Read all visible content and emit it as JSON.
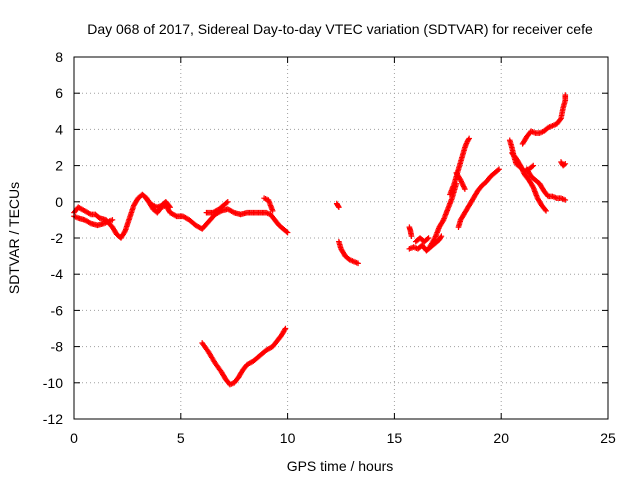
{
  "chart_data": {
    "type": "scatter",
    "title": "Day 068 of 2017, Sidereal Day-to-day VTEC variation (SDTVAR) for receiver cefe",
    "xlabel": "GPS time / hours",
    "ylabel": "SDTVAR / TECUs",
    "xlim": [
      0,
      25
    ],
    "ylim": [
      -12,
      8
    ],
    "xticks": [
      "0",
      "5",
      "10",
      "15",
      "20",
      "25"
    ],
    "yticks": [
      "-12",
      "-10",
      "-8",
      "-6",
      "-4",
      "-2",
      "0",
      "2",
      "4",
      "6",
      "8"
    ],
    "grid": true,
    "legend": "none",
    "marker": "plus",
    "color": "#ff0000",
    "segments": [
      [
        [
          0,
          -0.6
        ],
        [
          0.2,
          -0.3
        ],
        [
          0.5,
          -0.5
        ],
        [
          0.8,
          -0.7
        ],
        [
          1.0,
          -0.7
        ],
        [
          1.2,
          -0.9
        ],
        [
          1.5,
          -1.0
        ],
        [
          1.8,
          -1.4
        ],
        [
          2.0,
          -1.8
        ],
        [
          2.2,
          -2.0
        ],
        [
          2.4,
          -1.6
        ],
        [
          2.6,
          -0.9
        ],
        [
          2.8,
          -0.2
        ],
        [
          3.0,
          0.2
        ],
        [
          3.2,
          0.4
        ],
        [
          3.4,
          0.2
        ],
        [
          3.5,
          0.0
        ],
        [
          3.7,
          -0.4
        ],
        [
          3.9,
          -0.6
        ],
        [
          4.1,
          -0.3
        ],
        [
          4.3,
          -0.2
        ],
        [
          4.5,
          -0.6
        ],
        [
          4.8,
          -0.8
        ],
        [
          5.1,
          -0.8
        ],
        [
          5.4,
          -1.0
        ],
        [
          5.7,
          -1.3
        ],
        [
          6.0,
          -1.5
        ],
        [
          6.3,
          -1.1
        ],
        [
          6.6,
          -0.7
        ],
        [
          6.9,
          -0.5
        ],
        [
          7.2,
          -0.4
        ],
        [
          7.5,
          -0.6
        ],
        [
          7.8,
          -0.7
        ],
        [
          8.1,
          -0.6
        ],
        [
          8.4,
          -0.6
        ],
        [
          8.7,
          -0.6
        ],
        [
          9.0,
          -0.6
        ],
        [
          9.2,
          -0.7
        ],
        [
          9.4,
          -1.0
        ],
        [
          9.6,
          -1.3
        ],
        [
          9.8,
          -1.5
        ],
        [
          10.0,
          -1.7
        ]
      ],
      [
        [
          0,
          -0.8
        ],
        [
          0.2,
          -0.9
        ],
        [
          0.5,
          -1.0
        ],
        [
          0.8,
          -1.2
        ],
        [
          1.1,
          -1.3
        ],
        [
          1.4,
          -1.2
        ],
        [
          1.6,
          -1.1
        ],
        [
          1.8,
          -1.0
        ]
      ],
      [
        [
          3.3,
          0.3
        ],
        [
          3.5,
          0.0
        ],
        [
          3.7,
          -0.2
        ],
        [
          3.9,
          -0.3
        ],
        [
          4.1,
          -0.2
        ],
        [
          4.3,
          0.0
        ],
        [
          4.5,
          -0.3
        ]
      ],
      [
        [
          6.2,
          -0.6
        ],
        [
          6.5,
          -0.6
        ],
        [
          6.8,
          -0.4
        ],
        [
          7.0,
          -0.2
        ],
        [
          7.2,
          0.0
        ]
      ],
      [
        [
          8.9,
          0.2
        ],
        [
          9.1,
          0.1
        ],
        [
          9.2,
          -0.2
        ],
        [
          9.3,
          -0.5
        ]
      ],
      [
        [
          6.0,
          -7.8
        ],
        [
          6.3,
          -8.3
        ],
        [
          6.6,
          -8.9
        ],
        [
          6.9,
          -9.4
        ],
        [
          7.1,
          -9.8
        ],
        [
          7.3,
          -10.1
        ],
        [
          7.5,
          -10.0
        ],
        [
          7.7,
          -9.7
        ],
        [
          7.9,
          -9.3
        ],
        [
          8.1,
          -9.0
        ],
        [
          8.4,
          -8.8
        ],
        [
          8.7,
          -8.5
        ],
        [
          9.0,
          -8.2
        ],
        [
          9.3,
          -8.0
        ],
        [
          9.5,
          -7.7
        ],
        [
          9.7,
          -7.4
        ],
        [
          9.9,
          -7.0
        ]
      ],
      [
        [
          12.3,
          -0.1
        ],
        [
          12.35,
          -0.2
        ],
        [
          12.4,
          -0.3
        ]
      ],
      [
        [
          12.4,
          -2.2
        ],
        [
          12.5,
          -2.6
        ],
        [
          12.6,
          -2.8
        ],
        [
          12.7,
          -3.0
        ],
        [
          12.9,
          -3.2
        ],
        [
          13.1,
          -3.3
        ],
        [
          13.3,
          -3.4
        ]
      ],
      [
        [
          15.7,
          -1.4
        ],
        [
          15.75,
          -1.6
        ],
        [
          15.8,
          -1.9
        ]
      ],
      [
        [
          15.7,
          -2.6
        ],
        [
          15.9,
          -2.5
        ],
        [
          16.1,
          -2.6
        ],
        [
          16.3,
          -2.4
        ],
        [
          16.5,
          -2.7
        ],
        [
          16.7,
          -2.5
        ],
        [
          16.9,
          -2.3
        ],
        [
          17.1,
          -2.1
        ],
        [
          17.2,
          -1.9
        ]
      ],
      [
        [
          16.0,
          -2.2
        ],
        [
          16.2,
          -2.0
        ],
        [
          16.4,
          -2.2
        ],
        [
          16.6,
          -2.0
        ]
      ],
      [
        [
          16.6,
          -2.6
        ],
        [
          16.9,
          -2.0
        ],
        [
          17.1,
          -1.4
        ],
        [
          17.3,
          -1.0
        ],
        [
          17.5,
          -0.4
        ],
        [
          17.7,
          0.2
        ],
        [
          17.8,
          0.6
        ],
        [
          17.9,
          1.0
        ]
      ],
      [
        [
          17.6,
          0.4
        ],
        [
          17.8,
          1.0
        ],
        [
          17.9,
          1.4
        ],
        [
          18.0,
          1.8
        ],
        [
          18.1,
          2.2
        ],
        [
          18.2,
          2.6
        ],
        [
          18.3,
          3.0
        ],
        [
          18.4,
          3.3
        ],
        [
          18.5,
          3.5
        ]
      ],
      [
        [
          17.9,
          1.6
        ],
        [
          18.1,
          1.2
        ],
        [
          18.3,
          0.7
        ]
      ],
      [
        [
          18.0,
          -1.4
        ],
        [
          18.1,
          -1.0
        ],
        [
          18.3,
          -0.6
        ],
        [
          18.5,
          -0.2
        ],
        [
          18.7,
          0.2
        ],
        [
          18.9,
          0.6
        ],
        [
          19.1,
          0.9
        ],
        [
          19.3,
          1.1
        ],
        [
          19.5,
          1.4
        ],
        [
          19.7,
          1.6
        ],
        [
          19.9,
          1.8
        ]
      ],
      [
        [
          20.4,
          3.4
        ],
        [
          20.5,
          3.0
        ],
        [
          20.6,
          2.5
        ],
        [
          20.7,
          2.1
        ],
        [
          20.9,
          1.9
        ],
        [
          21.1,
          1.7
        ],
        [
          21.3,
          1.8
        ],
        [
          21.5,
          2.0
        ]
      ],
      [
        [
          20.5,
          2.7
        ],
        [
          20.7,
          2.4
        ],
        [
          20.9,
          2.0
        ],
        [
          21.1,
          1.5
        ],
        [
          21.3,
          1.2
        ],
        [
          21.5,
          0.8
        ],
        [
          21.7,
          0.2
        ],
        [
          21.9,
          -0.2
        ],
        [
          22.1,
          -0.5
        ]
      ],
      [
        [
          21.2,
          1.8
        ],
        [
          21.4,
          1.4
        ],
        [
          21.6,
          1.2
        ],
        [
          21.8,
          1.0
        ],
        [
          22.0,
          0.6
        ],
        [
          22.2,
          0.3
        ],
        [
          22.4,
          0.3
        ],
        [
          22.6,
          0.2
        ],
        [
          22.8,
          0.2
        ],
        [
          23.0,
          0.1
        ]
      ],
      [
        [
          21.0,
          3.2
        ],
        [
          21.2,
          3.6
        ],
        [
          21.4,
          3.9
        ],
        [
          21.6,
          3.8
        ],
        [
          21.8,
          3.8
        ],
        [
          22.0,
          3.9
        ],
        [
          22.2,
          4.1
        ],
        [
          22.4,
          4.2
        ],
        [
          22.6,
          4.3
        ],
        [
          22.8,
          4.6
        ],
        [
          22.9,
          5.2
        ],
        [
          23.0,
          5.6
        ],
        [
          23.0,
          5.9
        ]
      ],
      [
        [
          22.8,
          2.2
        ],
        [
          22.9,
          2.0
        ],
        [
          23.0,
          2.1
        ]
      ]
    ]
  }
}
